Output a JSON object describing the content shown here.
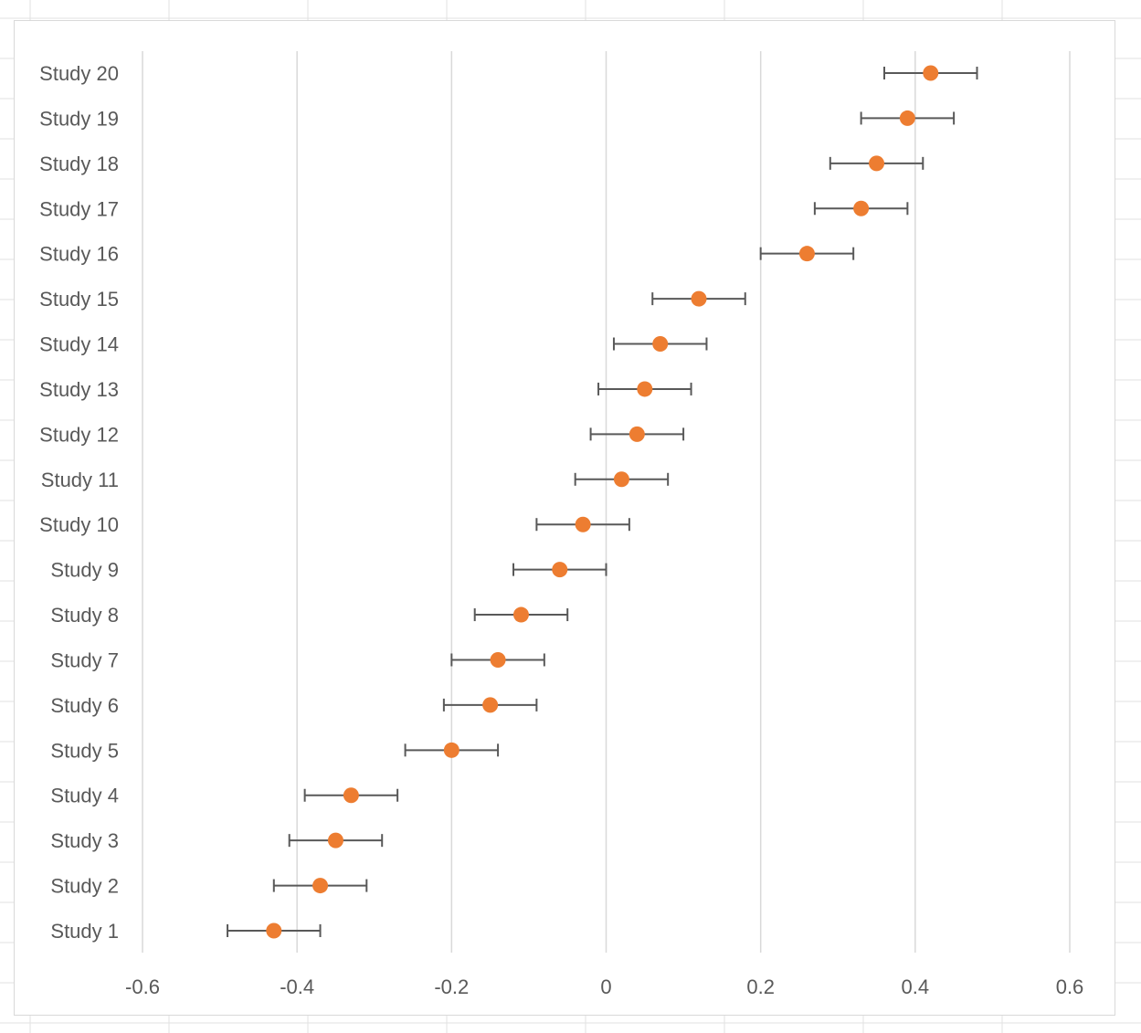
{
  "chart_data": {
    "type": "scatter",
    "subtype": "forest-plot",
    "title": "",
    "xlabel": "",
    "ylabel": "",
    "xlim": [
      -0.6,
      0.6
    ],
    "xticks": [
      "-0.6",
      "-0.4",
      "-0.2",
      "0",
      "0.2",
      "0.4",
      "0.6"
    ],
    "xtick_values": [
      -0.6,
      -0.4,
      -0.2,
      0,
      0.2,
      0.4,
      0.6
    ],
    "grid": "vertical",
    "legend": "none",
    "colors": {
      "marker": "#ed7d31",
      "error_bar": "#595959",
      "grid": "#d9d9d9",
      "text": "#595959"
    },
    "categories": [
      "Study 1",
      "Study 2",
      "Study 3",
      "Study 4",
      "Study 5",
      "Study 6",
      "Study 7",
      "Study 8",
      "Study 9",
      "Study 10",
      "Study 11",
      "Study 12",
      "Study 13",
      "Study 14",
      "Study 15",
      "Study 16",
      "Study 17",
      "Study 18",
      "Study 19",
      "Study 20"
    ],
    "values": [
      -0.43,
      -0.37,
      -0.35,
      -0.33,
      -0.2,
      -0.15,
      -0.14,
      -0.11,
      -0.06,
      -0.03,
      0.02,
      0.04,
      0.05,
      0.07,
      0.12,
      0.26,
      0.33,
      0.35,
      0.39,
      0.42
    ],
    "error": [
      0.06,
      0.06,
      0.06,
      0.06,
      0.06,
      0.06,
      0.06,
      0.06,
      0.06,
      0.06,
      0.06,
      0.06,
      0.06,
      0.06,
      0.06,
      0.06,
      0.06,
      0.06,
      0.06,
      0.06
    ]
  }
}
